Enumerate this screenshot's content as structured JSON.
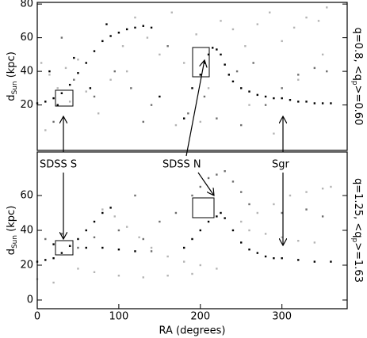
{
  "chart_data": [
    {
      "type": "scatter",
      "ylabel": {
        "main": "d",
        "sub": "Sun",
        "rest": " (kpc)"
      },
      "side_label": {
        "pre": "q=0.8, <q",
        "sub": "p",
        "post": ">=0.60"
      },
      "xlim": [
        0,
        380
      ],
      "ylim": [
        -7,
        81
      ],
      "yticks": [
        20,
        40,
        60,
        80
      ],
      "series": [
        {
          "name": "light",
          "color": "#b4b4b4",
          "x": [
            5,
            15,
            25,
            35,
            50,
            60,
            75,
            90,
            105,
            120,
            135,
            150,
            165,
            180,
            195,
            210,
            225,
            240,
            255,
            270,
            285,
            300,
            315,
            330,
            345,
            355,
            40,
            110,
            170,
            260,
            320,
            350,
            10,
            200,
            290
          ],
          "values": [
            45,
            38,
            30,
            42,
            47,
            28,
            15,
            35,
            55,
            72,
            60,
            50,
            75,
            45,
            62,
            30,
            70,
            65,
            55,
            68,
            75,
            58,
            66,
            72,
            70,
            78,
            22,
            40,
            8,
            20,
            35,
            50,
            5,
            10,
            3
          ]
        },
        {
          "name": "dark",
          "color": "#6e6e6e",
          "x": [
            20,
            45,
            70,
            95,
            115,
            140,
            160,
            185,
            205,
            220,
            245,
            265,
            280,
            300,
            320,
            340,
            355,
            30,
            130,
            250
          ],
          "values": [
            10,
            35,
            25,
            40,
            30,
            20,
            55,
            15,
            25,
            12,
            40,
            45,
            20,
            30,
            38,
            42,
            40,
            60,
            10,
            8
          ]
        },
        {
          "name": "sgr",
          "color": "#000000",
          "x": [
            0,
            10,
            20,
            30,
            40,
            50,
            60,
            70,
            80,
            90,
            100,
            110,
            120,
            130,
            140,
            200,
            205,
            210,
            215,
            220,
            225,
            230,
            235,
            240,
            250,
            260,
            270,
            280,
            290,
            300,
            310,
            320,
            330,
            340,
            350,
            360,
            45,
            65,
            85,
            150,
            180,
            190,
            25,
            15
          ],
          "values": [
            21,
            22,
            24,
            27,
            32,
            39,
            45,
            52,
            58,
            61,
            63,
            65,
            66,
            67,
            66,
            38,
            45,
            50,
            54,
            53,
            50,
            44,
            38,
            34,
            30,
            28,
            26,
            25,
            24,
            24,
            23,
            22,
            22,
            21,
            21,
            21,
            48,
            30,
            68,
            25,
            12,
            30,
            20,
            40
          ]
        }
      ]
    },
    {
      "type": "scatter",
      "ylabel": {
        "main": "d",
        "sub": "Sun",
        "rest": " (kpc)"
      },
      "side_label": {
        "pre": "q=1.25, <q",
        "sub": "p",
        "post": ">=1.63"
      },
      "xlabel": "RA (degrees)",
      "annotations": [
        "SDSS S",
        "SDSS N",
        "Sgr"
      ],
      "xlim": [
        0,
        380
      ],
      "xticks": [
        0,
        100,
        200,
        300
      ],
      "ylim": [
        -5,
        85
      ],
      "yticks": [
        0,
        20,
        40,
        60
      ],
      "series": [
        {
          "name": "light",
          "color": "#b4b4b4",
          "x": [
            80,
            95,
            110,
            125,
            140,
            160,
            180,
            200,
            50,
            70,
            100,
            130,
            160,
            190,
            220,
            250,
            270,
            290,
            310,
            330,
            350,
            360,
            260,
            280,
            300,
            320,
            340,
            0,
            20
          ],
          "values": [
            52,
            48,
            42,
            36,
            30,
            25,
            22,
            20,
            18,
            16,
            14,
            13,
            14,
            15,
            18,
            45,
            50,
            55,
            60,
            62,
            64,
            65,
            40,
            38,
            36,
            34,
            33,
            12,
            10
          ]
        },
        {
          "name": "dark",
          "color": "#6e6e6e",
          "x": [
            10,
            30,
            50,
            70,
            100,
            130,
            150,
            170,
            190,
            200,
            210,
            220,
            230,
            240,
            250,
            260,
            300,
            330,
            350,
            140,
            120
          ],
          "values": [
            35,
            38,
            30,
            36,
            40,
            35,
            45,
            50,
            60,
            65,
            70,
            72,
            74,
            68,
            62,
            55,
            50,
            52,
            48,
            28,
            60
          ]
        },
        {
          "name": "sgr",
          "color": "#000000",
          "x": [
            0,
            10,
            20,
            30,
            40,
            50,
            60,
            70,
            80,
            90,
            180,
            190,
            200,
            210,
            220,
            225,
            230,
            240,
            250,
            260,
            270,
            280,
            290,
            300,
            320,
            340,
            360,
            20,
            40,
            60,
            80,
            100,
            120
          ],
          "values": [
            22,
            23,
            24,
            27,
            31,
            35,
            40,
            45,
            50,
            53,
            30,
            35,
            40,
            45,
            48,
            50,
            47,
            40,
            33,
            29,
            27,
            25,
            24,
            24,
            23,
            22,
            22,
            32,
            31,
            30,
            30,
            29,
            28
          ]
        }
      ]
    }
  ]
}
